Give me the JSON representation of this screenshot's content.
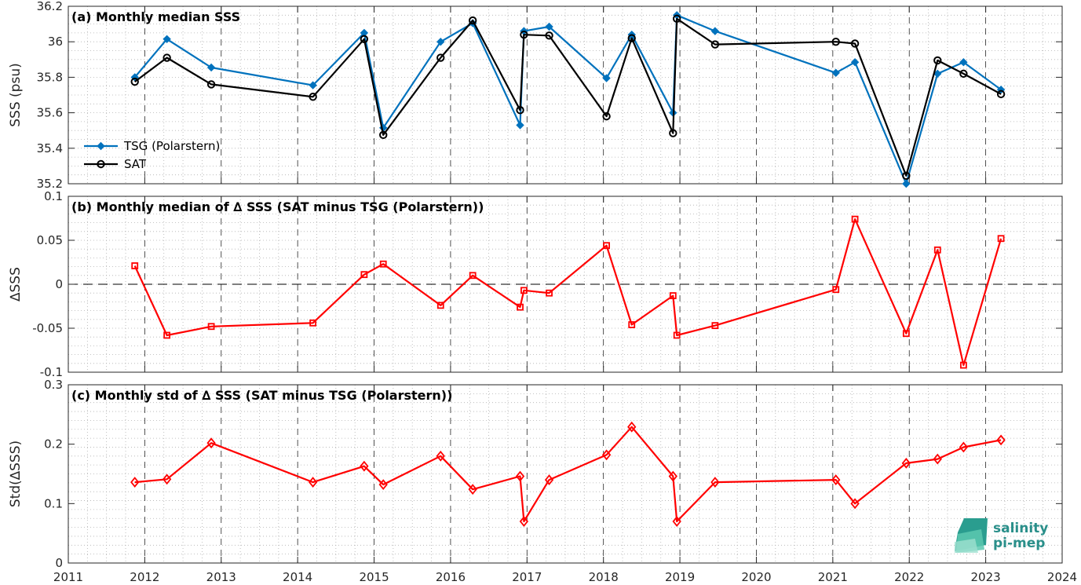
{
  "figure": {
    "colors": {
      "tsg": "#0072BD",
      "sat": "#000000",
      "delta": "#FF0000",
      "grid_dashed": "#000000",
      "grid_dotted": "#b0b0b0"
    },
    "x_ticks": [
      "2011",
      "2012",
      "2013",
      "2014",
      "2015",
      "2016",
      "2017",
      "2018",
      "2019",
      "2020",
      "2021",
      "2022",
      "2023",
      "2024"
    ],
    "logo": {
      "line1": "salinity",
      "line2": "pi-mep"
    }
  },
  "chart_data": [
    {
      "type": "line",
      "title": "(a) Monthly median SSS",
      "xlabel": "",
      "ylabel": "SSS (psu)",
      "xlim": [
        2011,
        2024
      ],
      "ylim": [
        35.2,
        36.2
      ],
      "y_ticks": [
        "35.2",
        "35.4",
        "35.6",
        "35.8",
        "36",
        "36.2"
      ],
      "legend_position": "bottom-left",
      "x": [
        2011.87,
        2012.29,
        2012.87,
        2014.2,
        2014.87,
        2015.12,
        2015.87,
        2016.29,
        2016.91,
        2016.96,
        2017.29,
        2018.04,
        2018.37,
        2018.91,
        2018.96,
        2019.46,
        2021.04,
        2021.29,
        2021.96,
        2022.37,
        2022.71,
        2023.2
      ],
      "series": [
        {
          "name": "TSG (Polarstern)",
          "marker": "dot",
          "values": [
            35.8,
            36.015,
            35.855,
            35.755,
            36.05,
            35.515,
            36.0,
            36.105,
            35.53,
            36.06,
            36.085,
            35.795,
            36.04,
            35.6,
            36.15,
            36.06,
            35.825,
            35.885,
            35.2,
            35.82,
            35.885,
            35.73
          ]
        },
        {
          "name": "SAT",
          "marker": "circle",
          "values": [
            35.775,
            35.91,
            35.76,
            35.69,
            36.015,
            35.475,
            35.91,
            36.12,
            35.615,
            36.04,
            36.035,
            35.58,
            36.02,
            35.485,
            36.13,
            35.985,
            36.0,
            35.99,
            35.245,
            35.895,
            35.82,
            35.705
          ]
        }
      ]
    },
    {
      "type": "line",
      "title": "(b) Monthly median of ∆ SSS (SAT minus TSG (Polarstern))",
      "xlabel": "",
      "ylabel": "∆SSS",
      "xlim": [
        2011,
        2024
      ],
      "ylim": [
        -0.1,
        0.1
      ],
      "y_ticks": [
        "-0.1",
        "-0.05",
        "0",
        "0.05",
        "0.1"
      ],
      "zero_line": true,
      "x": [
        2011.87,
        2012.29,
        2012.87,
        2014.2,
        2014.87,
        2015.12,
        2015.87,
        2016.29,
        2016.91,
        2016.96,
        2017.29,
        2018.04,
        2018.37,
        2018.91,
        2018.96,
        2019.46,
        2021.04,
        2021.29,
        2021.96,
        2022.37,
        2022.71,
        2023.2
      ],
      "series": [
        {
          "name": "",
          "marker": "square",
          "values": [
            0.021,
            -0.058,
            -0.048,
            -0.044,
            0.011,
            0.023,
            -0.024,
            0.01,
            -0.026,
            -0.007,
            -0.01,
            0.044,
            -0.046,
            -0.013,
            -0.058,
            -0.047,
            -0.006,
            0.074,
            -0.056,
            0.039,
            -0.092,
            0.052
          ]
        }
      ]
    },
    {
      "type": "line",
      "title": "(c) Monthly std of ∆ SSS (SAT minus TSG (Polarstern))",
      "xlabel": "",
      "ylabel": "Std(∆SSS)",
      "xlim": [
        2011,
        2024
      ],
      "ylim": [
        0,
        0.3
      ],
      "y_ticks": [
        "0",
        "0.1",
        "0.2",
        "0.3"
      ],
      "x": [
        2011.87,
        2012.29,
        2012.87,
        2014.2,
        2014.87,
        2015.12,
        2015.87,
        2016.29,
        2016.91,
        2016.96,
        2017.29,
        2018.04,
        2018.37,
        2018.91,
        2018.96,
        2019.46,
        2021.04,
        2021.29,
        2021.96,
        2022.37,
        2022.71,
        2023.2
      ],
      "series": [
        {
          "name": "",
          "marker": "diamond",
          "values": [
            0.136,
            0.141,
            0.202,
            0.136,
            0.163,
            0.132,
            0.18,
            0.124,
            0.146,
            0.07,
            0.14,
            0.182,
            0.229,
            0.146,
            0.07,
            0.136,
            0.14,
            0.1,
            0.168,
            0.175,
            0.195,
            0.207
          ]
        }
      ]
    }
  ]
}
